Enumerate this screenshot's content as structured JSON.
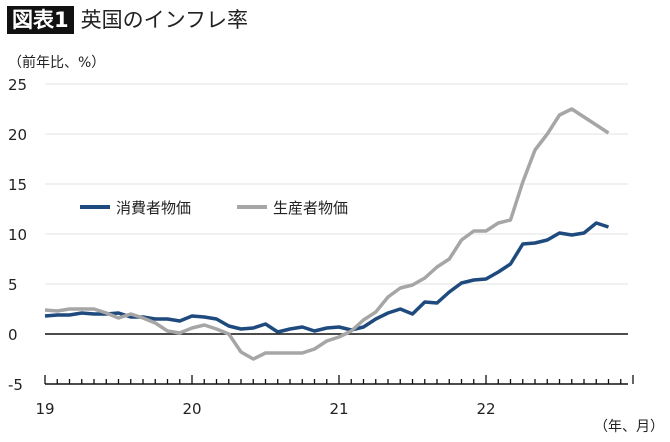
{
  "header": {
    "badge": "図表1",
    "title": "英国のインフレ率"
  },
  "chart_data": {
    "type": "line",
    "title": "英国のインフレ率",
    "ylabel": "（前年比、%）",
    "xlabel": "（年、月）",
    "ylim": [
      -5,
      25
    ],
    "yticks": [
      -5,
      0,
      5,
      10,
      15,
      20,
      25
    ],
    "xticks": [
      {
        "label": "19",
        "date": "2019-01"
      },
      {
        "label": "20",
        "date": "2020-01"
      },
      {
        "label": "21",
        "date": "2021-01"
      },
      {
        "label": "22",
        "date": "2022-01"
      }
    ],
    "xrange": [
      "2019-01",
      "2022-12"
    ],
    "frequency": "monthly",
    "grid": true,
    "legend_placement": "center-left",
    "series": [
      {
        "name": "消費者物価",
        "color": "#1f4a7d",
        "start": "2019-01",
        "values": [
          1.8,
          1.9,
          1.9,
          2.1,
          2.0,
          2.0,
          2.1,
          1.7,
          1.7,
          1.5,
          1.5,
          1.3,
          1.8,
          1.7,
          1.5,
          0.8,
          0.5,
          0.6,
          1.0,
          0.2,
          0.5,
          0.7,
          0.3,
          0.6,
          0.7,
          0.4,
          0.7,
          1.5,
          2.1,
          2.5,
          2.0,
          3.2,
          3.1,
          4.2,
          5.1,
          5.4,
          5.5,
          6.2,
          7.0,
          9.0,
          9.1,
          9.4,
          10.1,
          9.9,
          10.1,
          11.1,
          10.7
        ]
      },
      {
        "name": "生産者物価",
        "color": "#a6a6a6",
        "start": "2019-01",
        "values": [
          2.4,
          2.3,
          2.5,
          2.5,
          2.5,
          2.1,
          1.6,
          2.0,
          1.6,
          1.1,
          0.3,
          0.1,
          0.6,
          0.9,
          0.5,
          0.0,
          -1.8,
          -2.5,
          -1.9,
          -1.9,
          -1.9,
          -1.9,
          -1.5,
          -0.7,
          -0.3,
          0.3,
          1.4,
          2.2,
          3.7,
          4.6,
          4.9,
          5.6,
          6.7,
          7.5,
          9.4,
          10.3,
          10.3,
          11.1,
          11.4,
          15.2,
          18.4,
          20.0,
          21.9,
          22.5,
          21.7,
          20.9,
          20.1
        ]
      }
    ]
  }
}
